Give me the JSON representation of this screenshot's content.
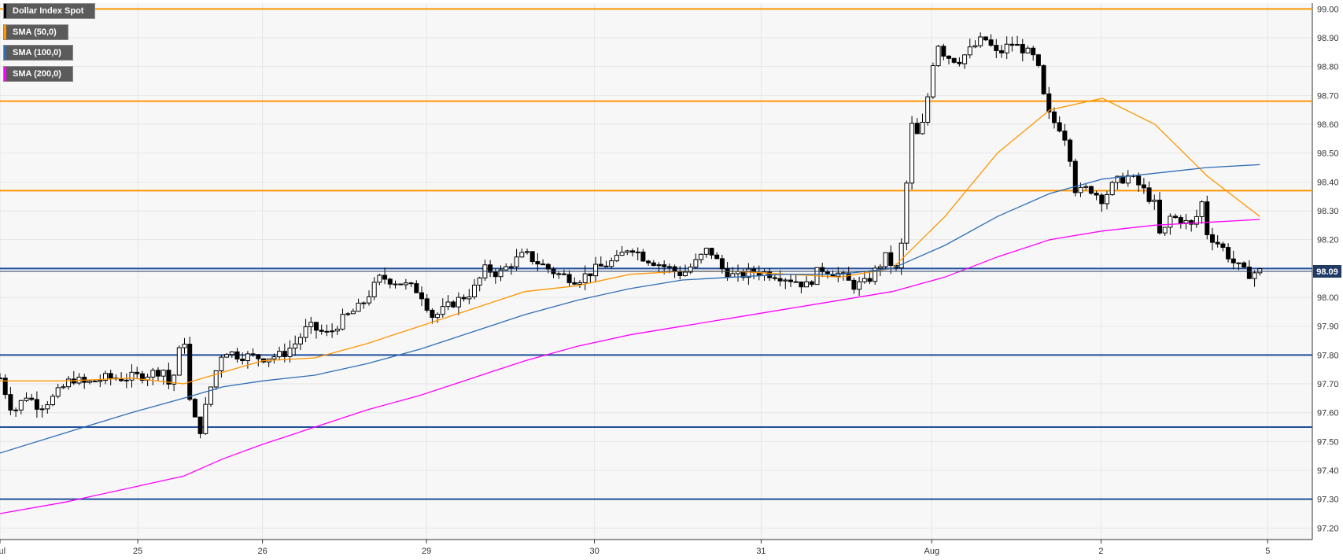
{
  "legend": {
    "title": "Dollar Index Spot",
    "sma50": "SMA (50,0)",
    "sma100": "SMA (100,0)",
    "sma200": "SMA (200,0)"
  },
  "colors": {
    "background": "#f7f7f7",
    "grid": "#e6e6e6",
    "sma50": "#ff9500",
    "sma100": "#2f6db5",
    "sma200": "#ff00ff",
    "resistance": "#ff9500",
    "support": "#1f4e9a",
    "candle": "#000000",
    "price_badge": "#1f3a63"
  },
  "chart_data": {
    "type": "candlestick",
    "title": "Dollar Index Spot",
    "ylim": [
      97.16,
      99.02
    ],
    "y_ticks": [
      "97.20",
      "97.30",
      "97.40",
      "97.50",
      "97.60",
      "97.70",
      "97.80",
      "97.90",
      "98.00",
      "98.10",
      "98.20",
      "98.30",
      "98.40",
      "98.50",
      "98.60",
      "98.70",
      "98.80",
      "98.90",
      "99.00"
    ],
    "x_ticks": [
      {
        "label": "Jul",
        "t": 0
      },
      {
        "label": "25",
        "t": 0.105
      },
      {
        "label": "26",
        "t": 0.2
      },
      {
        "label": "29",
        "t": 0.325
      },
      {
        "label": "30",
        "t": 0.453
      },
      {
        "label": "31",
        "t": 0.58
      },
      {
        "label": "Aug",
        "t": 0.71
      },
      {
        "label": "2",
        "t": 0.839
      },
      {
        "label": "5",
        "t": 0.966
      }
    ],
    "current_price": "98.09",
    "current_price_value": 98.09,
    "resistance_levels": [
      99.0,
      98.68,
      98.37
    ],
    "support_levels": [
      98.1,
      97.8,
      97.55,
      97.3
    ],
    "close_path": [
      [
        0,
        97.72
      ],
      [
        0.01,
        97.6
      ],
      [
        0.02,
        97.66
      ],
      [
        0.03,
        97.62
      ],
      [
        0.04,
        97.65
      ],
      [
        0.055,
        97.72
      ],
      [
        0.065,
        97.7
      ],
      [
        0.08,
        97.72
      ],
      [
        0.095,
        97.72
      ],
      [
        0.11,
        97.73
      ],
      [
        0.125,
        97.75
      ],
      [
        0.13,
        97.68
      ],
      [
        0.14,
        97.88
      ],
      [
        0.145,
        97.62
      ],
      [
        0.152,
        97.53
      ],
      [
        0.16,
        97.68
      ],
      [
        0.17,
        97.82
      ],
      [
        0.18,
        97.8
      ],
      [
        0.2,
        97.79
      ],
      [
        0.215,
        97.8
      ],
      [
        0.225,
        97.84
      ],
      [
        0.235,
        97.9
      ],
      [
        0.25,
        97.87
      ],
      [
        0.26,
        97.92
      ],
      [
        0.275,
        97.97
      ],
      [
        0.29,
        98.07
      ],
      [
        0.305,
        98.05
      ],
      [
        0.32,
        98.02
      ],
      [
        0.33,
        97.93
      ],
      [
        0.345,
        97.98
      ],
      [
        0.36,
        98.02
      ],
      [
        0.37,
        98.1
      ],
      [
        0.38,
        98.08
      ],
      [
        0.39,
        98.12
      ],
      [
        0.4,
        98.15
      ],
      [
        0.41,
        98.12
      ],
      [
        0.425,
        98.08
      ],
      [
        0.44,
        98.06
      ],
      [
        0.455,
        98.1
      ],
      [
        0.47,
        98.13
      ],
      [
        0.48,
        98.18
      ],
      [
        0.49,
        98.14
      ],
      [
        0.5,
        98.12
      ],
      [
        0.51,
        98.1
      ],
      [
        0.52,
        98.08
      ],
      [
        0.53,
        98.12
      ],
      [
        0.54,
        98.17
      ],
      [
        0.55,
        98.1
      ],
      [
        0.56,
        98.07
      ],
      [
        0.575,
        98.09
      ],
      [
        0.59,
        98.08
      ],
      [
        0.605,
        98.06
      ],
      [
        0.615,
        98.04
      ],
      [
        0.625,
        98.1
      ],
      [
        0.64,
        98.08
      ],
      [
        0.65,
        98.04
      ],
      [
        0.66,
        98.05
      ],
      [
        0.675,
        98.14
      ],
      [
        0.685,
        98.08
      ],
      [
        0.69,
        98.35
      ],
      [
        0.695,
        98.6
      ],
      [
        0.7,
        98.55
      ],
      [
        0.705,
        98.63
      ],
      [
        0.71,
        98.8
      ],
      [
        0.715,
        98.88
      ],
      [
        0.72,
        98.84
      ],
      [
        0.73,
        98.82
      ],
      [
        0.74,
        98.86
      ],
      [
        0.75,
        98.9
      ],
      [
        0.76,
        98.84
      ],
      [
        0.77,
        98.88
      ],
      [
        0.78,
        98.86
      ],
      [
        0.79,
        98.82
      ],
      [
        0.795,
        98.7
      ],
      [
        0.8,
        98.62
      ],
      [
        0.81,
        98.58
      ],
      [
        0.815,
        98.5
      ],
      [
        0.82,
        98.36
      ],
      [
        0.83,
        98.38
      ],
      [
        0.84,
        98.34
      ],
      [
        0.85,
        98.4
      ],
      [
        0.86,
        98.42
      ],
      [
        0.87,
        98.38
      ],
      [
        0.88,
        98.32
      ],
      [
        0.885,
        98.18
      ],
      [
        0.89,
        98.28
      ],
      [
        0.9,
        98.27
      ],
      [
        0.91,
        98.24
      ],
      [
        0.915,
        98.35
      ],
      [
        0.92,
        98.22
      ],
      [
        0.93,
        98.18
      ],
      [
        0.94,
        98.12
      ],
      [
        0.95,
        98.08
      ],
      [
        0.96,
        98.09
      ]
    ],
    "series": [
      {
        "name": "SMA (50,0)",
        "color": "#ff9500",
        "points": [
          [
            0,
            97.71
          ],
          [
            0.05,
            97.71
          ],
          [
            0.1,
            97.72
          ],
          [
            0.14,
            97.7
          ],
          [
            0.17,
            97.74
          ],
          [
            0.2,
            97.78
          ],
          [
            0.24,
            97.79
          ],
          [
            0.28,
            97.84
          ],
          [
            0.32,
            97.9
          ],
          [
            0.36,
            97.96
          ],
          [
            0.4,
            98.02
          ],
          [
            0.44,
            98.04
          ],
          [
            0.48,
            98.08
          ],
          [
            0.52,
            98.09
          ],
          [
            0.56,
            98.09
          ],
          [
            0.6,
            98.08
          ],
          [
            0.64,
            98.07
          ],
          [
            0.68,
            98.1
          ],
          [
            0.72,
            98.28
          ],
          [
            0.76,
            98.5
          ],
          [
            0.8,
            98.65
          ],
          [
            0.84,
            98.69
          ],
          [
            0.88,
            98.6
          ],
          [
            0.92,
            98.42
          ],
          [
            0.96,
            98.28
          ]
        ]
      },
      {
        "name": "SMA (100,0)",
        "color": "#2f6db5",
        "points": [
          [
            0,
            97.46
          ],
          [
            0.05,
            97.53
          ],
          [
            0.1,
            97.6
          ],
          [
            0.14,
            97.65
          ],
          [
            0.17,
            97.69
          ],
          [
            0.2,
            97.71
          ],
          [
            0.24,
            97.73
          ],
          [
            0.28,
            97.77
          ],
          [
            0.32,
            97.82
          ],
          [
            0.36,
            97.88
          ],
          [
            0.4,
            97.94
          ],
          [
            0.44,
            97.99
          ],
          [
            0.48,
            98.03
          ],
          [
            0.52,
            98.06
          ],
          [
            0.56,
            98.07
          ],
          [
            0.6,
            98.08
          ],
          [
            0.64,
            98.08
          ],
          [
            0.68,
            98.1
          ],
          [
            0.72,
            98.18
          ],
          [
            0.76,
            98.28
          ],
          [
            0.8,
            98.36
          ],
          [
            0.84,
            98.41
          ],
          [
            0.88,
            98.43
          ],
          [
            0.92,
            98.45
          ],
          [
            0.96,
            98.46
          ]
        ]
      },
      {
        "name": "SMA (200,0)",
        "color": "#ff00ff",
        "points": [
          [
            0,
            97.25
          ],
          [
            0.05,
            97.29
          ],
          [
            0.1,
            97.34
          ],
          [
            0.14,
            97.38
          ],
          [
            0.17,
            97.44
          ],
          [
            0.2,
            97.49
          ],
          [
            0.24,
            97.55
          ],
          [
            0.28,
            97.61
          ],
          [
            0.32,
            97.66
          ],
          [
            0.36,
            97.72
          ],
          [
            0.4,
            97.78
          ],
          [
            0.44,
            97.83
          ],
          [
            0.48,
            97.87
          ],
          [
            0.52,
            97.9
          ],
          [
            0.56,
            97.93
          ],
          [
            0.6,
            97.96
          ],
          [
            0.64,
            97.99
          ],
          [
            0.68,
            98.02
          ],
          [
            0.72,
            98.07
          ],
          [
            0.76,
            98.14
          ],
          [
            0.8,
            98.2
          ],
          [
            0.84,
            98.23
          ],
          [
            0.88,
            98.25
          ],
          [
            0.92,
            98.26
          ],
          [
            0.96,
            98.27
          ]
        ]
      }
    ]
  }
}
